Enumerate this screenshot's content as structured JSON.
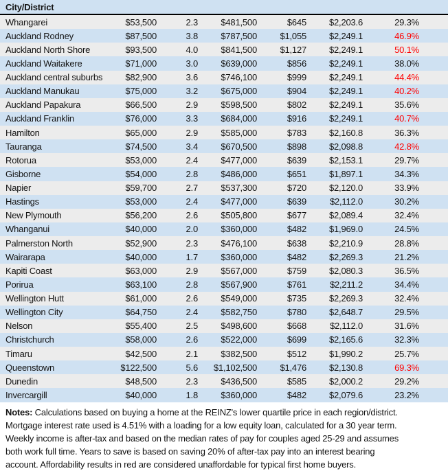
{
  "chart_data": {
    "type": "table",
    "header": {
      "city_label": "City/District"
    },
    "rows": [
      {
        "city": "Whangarei",
        "deposit": "$53,500",
        "years": "2.3",
        "price": "$481,500",
        "payment": "$645",
        "income": "$2,203.6",
        "percent": "29.3%",
        "unaffordable": false
      },
      {
        "city": "Auckland Rodney",
        "deposit": "$87,500",
        "years": "3.8",
        "price": "$787,500",
        "payment": "$1,055",
        "income": "$2,249.1",
        "percent": "46.9%",
        "unaffordable": true
      },
      {
        "city": "Auckland North Shore",
        "deposit": "$93,500",
        "years": "4.0",
        "price": "$841,500",
        "payment": "$1,127",
        "income": "$2,249.1",
        "percent": "50.1%",
        "unaffordable": true
      },
      {
        "city": "Auckland Waitakere",
        "deposit": "$71,000",
        "years": "3.0",
        "price": "$639,000",
        "payment": "$856",
        "income": "$2,249.1",
        "percent": "38.0%",
        "unaffordable": false
      },
      {
        "city": "Auckland central suburbs",
        "deposit": "$82,900",
        "years": "3.6",
        "price": "$746,100",
        "payment": "$999",
        "income": "$2,249.1",
        "percent": "44.4%",
        "unaffordable": true
      },
      {
        "city": "Auckland Manukau",
        "deposit": "$75,000",
        "years": "3.2",
        "price": "$675,000",
        "payment": "$904",
        "income": "$2,249.1",
        "percent": "40.2%",
        "unaffordable": true
      },
      {
        "city": "Auckland Papakura",
        "deposit": "$66,500",
        "years": "2.9",
        "price": "$598,500",
        "payment": "$802",
        "income": "$2,249.1",
        "percent": "35.6%",
        "unaffordable": false
      },
      {
        "city": "Auckland Franklin",
        "deposit": "$76,000",
        "years": "3.3",
        "price": "$684,000",
        "payment": "$916",
        "income": "$2,249.1",
        "percent": "40.7%",
        "unaffordable": true
      },
      {
        "city": "Hamilton",
        "deposit": "$65,000",
        "years": "2.9",
        "price": "$585,000",
        "payment": "$783",
        "income": "$2,160.8",
        "percent": "36.3%",
        "unaffordable": false
      },
      {
        "city": "Tauranga",
        "deposit": "$74,500",
        "years": "3.4",
        "price": "$670,500",
        "payment": "$898",
        "income": "$2,098.8",
        "percent": "42.8%",
        "unaffordable": true
      },
      {
        "city": "Rotorua",
        "deposit": "$53,000",
        "years": "2.4",
        "price": "$477,000",
        "payment": "$639",
        "income": "$2,153.1",
        "percent": "29.7%",
        "unaffordable": false
      },
      {
        "city": "Gisborne",
        "deposit": "$54,000",
        "years": "2.8",
        "price": "$486,000",
        "payment": "$651",
        "income": "$1,897.1",
        "percent": "34.3%",
        "unaffordable": false
      },
      {
        "city": "Napier",
        "deposit": "$59,700",
        "years": "2.7",
        "price": "$537,300",
        "payment": "$720",
        "income": "$2,120.0",
        "percent": "33.9%",
        "unaffordable": false
      },
      {
        "city": "Hastings",
        "deposit": "$53,000",
        "years": "2.4",
        "price": "$477,000",
        "payment": "$639",
        "income": "$2,112.0",
        "percent": "30.2%",
        "unaffordable": false
      },
      {
        "city": "New Plymouth",
        "deposit": "$56,200",
        "years": "2.6",
        "price": "$505,800",
        "payment": "$677",
        "income": "$2,089.4",
        "percent": "32.4%",
        "unaffordable": false
      },
      {
        "city": "Whanganui",
        "deposit": "$40,000",
        "years": "2.0",
        "price": "$360,000",
        "payment": "$482",
        "income": "$1,969.0",
        "percent": "24.5%",
        "unaffordable": false
      },
      {
        "city": "Palmerston North",
        "deposit": "$52,900",
        "years": "2.3",
        "price": "$476,100",
        "payment": "$638",
        "income": "$2,210.9",
        "percent": "28.8%",
        "unaffordable": false
      },
      {
        "city": "Wairarapa",
        "deposit": "$40,000",
        "years": "1.7",
        "price": "$360,000",
        "payment": "$482",
        "income": "$2,269.3",
        "percent": "21.2%",
        "unaffordable": false
      },
      {
        "city": "Kapiti Coast",
        "deposit": "$63,000",
        "years": "2.9",
        "price": "$567,000",
        "payment": "$759",
        "income": "$2,080.3",
        "percent": "36.5%",
        "unaffordable": false
      },
      {
        "city": "Porirua",
        "deposit": "$63,100",
        "years": "2.8",
        "price": "$567,900",
        "payment": "$761",
        "income": "$2,211.2",
        "percent": "34.4%",
        "unaffordable": false
      },
      {
        "city": "Wellington Hutt",
        "deposit": "$61,000",
        "years": "2.6",
        "price": "$549,000",
        "payment": "$735",
        "income": "$2,269.3",
        "percent": "32.4%",
        "unaffordable": false
      },
      {
        "city": "Wellington City",
        "deposit": "$64,750",
        "years": "2.4",
        "price": "$582,750",
        "payment": "$780",
        "income": "$2,648.7",
        "percent": "29.5%",
        "unaffordable": false
      },
      {
        "city": "Nelson",
        "deposit": "$55,400",
        "years": "2.5",
        "price": "$498,600",
        "payment": "$668",
        "income": "$2,112.0",
        "percent": "31.6%",
        "unaffordable": false
      },
      {
        "city": "Christchurch",
        "deposit": "$58,000",
        "years": "2.6",
        "price": "$522,000",
        "payment": "$699",
        "income": "$2,165.6",
        "percent": "32.3%",
        "unaffordable": false
      },
      {
        "city": "Timaru",
        "deposit": "$42,500",
        "years": "2.1",
        "price": "$382,500",
        "payment": "$512",
        "income": "$1,990.2",
        "percent": "25.7%",
        "unaffordable": false
      },
      {
        "city": "Queenstown",
        "deposit": "$122,500",
        "years": "5.6",
        "price": "$1,102,500",
        "payment": "$1,476",
        "income": "$2,130.8",
        "percent": "69.3%",
        "unaffordable": true
      },
      {
        "city": "Dunedin",
        "deposit": "$48,500",
        "years": "2.3",
        "price": "$436,500",
        "payment": "$585",
        "income": "$2,000.2",
        "percent": "29.2%",
        "unaffordable": false
      },
      {
        "city": "Invercargill",
        "deposit": "$40,000",
        "years": "1.8",
        "price": "$360,000",
        "payment": "$482",
        "income": "$2,079.6",
        "percent": "23.2%",
        "unaffordable": false
      }
    ]
  },
  "notes": {
    "label": "Notes:",
    "lines": [
      " Calculations based on buying a home at the REINZ's lower quartile price in each region/district.",
      "Mortgage interest rate used is 4.51% with a loading for a low equity loan, calculated for a 30 year term.",
      "Weekly income is after-tax and based on the median rates of pay for couples aged 25-29 and assumes",
      "both work full time. Years to save is based on saving 20% of after-tax pay into an interest bearing",
      "account. Affordability results in red are considered unaffordable for typical first home buyers."
    ]
  },
  "colors": {
    "row_alt_blue": "#cfe1f2",
    "row_alt_gray": "#ececec",
    "header_bg": "#cfe1f2",
    "unaffordable_red": "#fe0000",
    "text": "#141414"
  }
}
